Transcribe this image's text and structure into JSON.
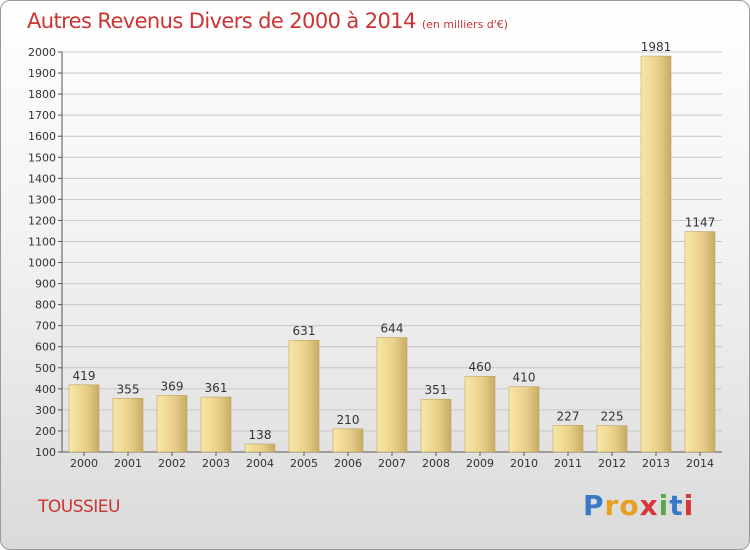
{
  "title": "Autres Revenus Divers de 2000 à 2014",
  "subtitle": "(en milliers d'€)",
  "commune": "TOUSSIEU",
  "logo": {
    "letters": [
      "P",
      "r",
      "o",
      "x",
      "i",
      "t",
      "i"
    ],
    "colors": [
      "#3a78c8",
      "#e8a020",
      "#e8a020",
      "#d8363a",
      "#5aa84a",
      "#3a78c8",
      "#d8363a"
    ]
  },
  "colors": {
    "title": "#cc3333",
    "bar_light": "#f8e7a6",
    "bar_dark": "#c8ac62",
    "grid": "#c8c8c8"
  },
  "chart_data": {
    "type": "bar",
    "title": "Autres Revenus Divers de 2000 à 2014",
    "subtitle": "(en milliers d'€)",
    "categories": [
      "2000",
      "2001",
      "2002",
      "2003",
      "2004",
      "2005",
      "2006",
      "2007",
      "2008",
      "2009",
      "2010",
      "2011",
      "2012",
      "2013",
      "2014"
    ],
    "values": [
      419,
      355,
      369,
      361,
      138,
      631,
      210,
      644,
      351,
      460,
      410,
      227,
      225,
      1981,
      1147
    ],
    "ylim": [
      100,
      2000
    ],
    "yticks": [
      100,
      200,
      300,
      400,
      500,
      600,
      700,
      800,
      900,
      1000,
      1100,
      1200,
      1300,
      1400,
      1500,
      1600,
      1700,
      1800,
      1900,
      2000
    ],
    "grid": true,
    "show_data_labels": true
  }
}
